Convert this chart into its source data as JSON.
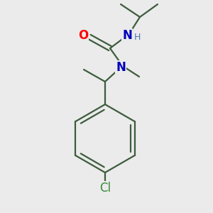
{
  "background_color": "#ebebeb",
  "bond_color": "#3d5c3d",
  "atom_colors": {
    "O": "#ff0000",
    "N": "#0000bb",
    "Cl": "#3a8a3a",
    "H": "#4a7aaa",
    "C": "#3d5c3d"
  },
  "lw": 1.6,
  "font_size_atom": 11,
  "font_size_h": 9
}
